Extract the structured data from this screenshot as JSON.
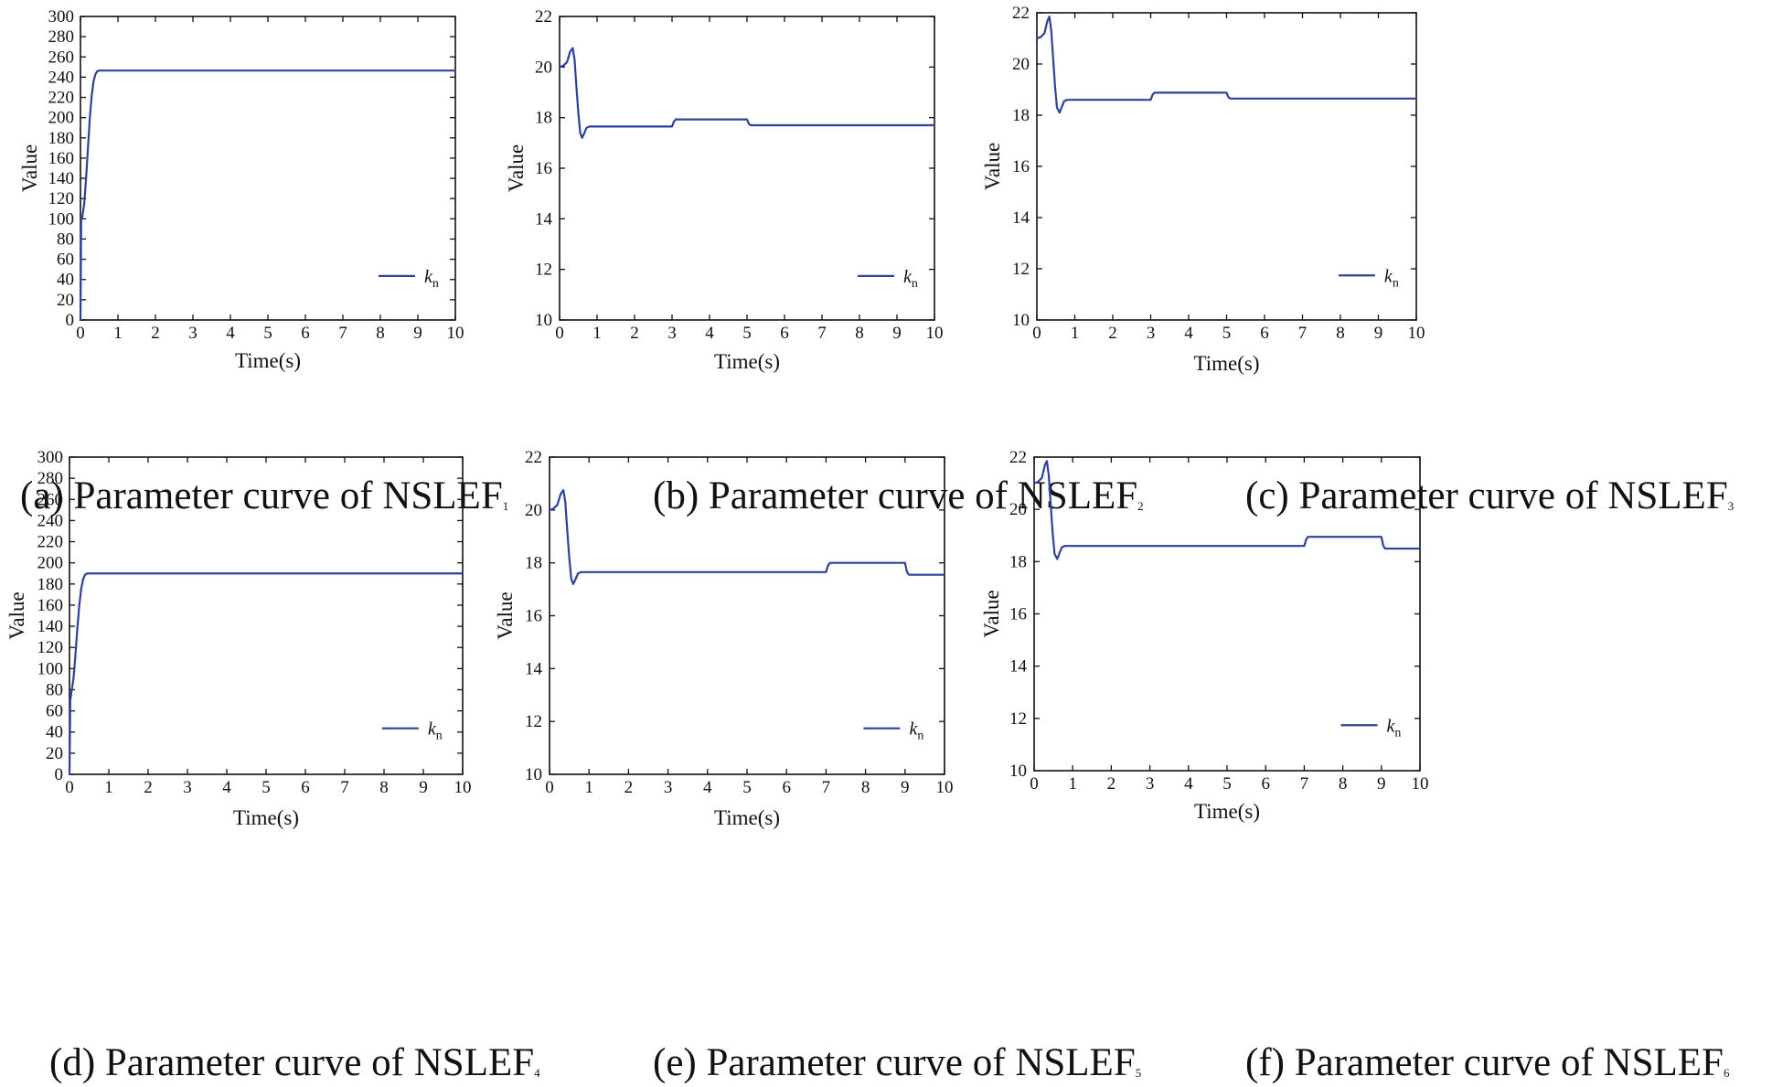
{
  "colors": {
    "line": "#2e3f9e",
    "axis": "#111111",
    "background": "#ffffff"
  },
  "chart_data": [
    {
      "type": "line",
      "caption": "(a) Parameter curve of NSLEF",
      "caption_sub": "1",
      "xlabel": "Time(s)",
      "ylabel": "Value",
      "xlim": [
        0,
        10
      ],
      "ylim": [
        0,
        300
      ],
      "xticks": [
        0,
        1,
        2,
        3,
        4,
        5,
        6,
        7,
        8,
        9,
        10
      ],
      "yticks": [
        0,
        20,
        40,
        60,
        80,
        100,
        120,
        140,
        160,
        180,
        200,
        220,
        240,
        260,
        280,
        300
      ],
      "series": [
        {
          "name": "k",
          "name_sub": "n",
          "x": [
            0,
            0.02,
            0.05,
            0.1,
            0.15,
            0.2,
            0.25,
            0.3,
            0.35,
            0.4,
            0.45,
            0.5,
            0.55,
            0.6,
            1,
            10
          ],
          "y": [
            0,
            100,
            102,
            115,
            140,
            170,
            200,
            222,
            236,
            243,
            246,
            246.5,
            246.5,
            246.5,
            246.5,
            246.5
          ]
        }
      ]
    },
    {
      "type": "line",
      "caption": "(b) Parameter curve of NSLEF",
      "caption_sub": "2",
      "xlabel": "Time(s)",
      "ylabel": "Value",
      "xlim": [
        0,
        10
      ],
      "ylim": [
        10,
        22
      ],
      "xticks": [
        0,
        1,
        2,
        3,
        4,
        5,
        6,
        7,
        8,
        9,
        10
      ],
      "yticks": [
        10,
        12,
        14,
        16,
        18,
        20,
        22
      ],
      "series": [
        {
          "name": "k",
          "name_sub": "n",
          "x": [
            0,
            0.1,
            0.2,
            0.28,
            0.35,
            0.4,
            0.45,
            0.5,
            0.55,
            0.6,
            0.65,
            0.72,
            0.8,
            1,
            3,
            3.05,
            3.1,
            5,
            5.05,
            5.1,
            10
          ],
          "y": [
            20,
            20.05,
            20.2,
            20.6,
            20.75,
            20.3,
            19.2,
            18.2,
            17.4,
            17.2,
            17.35,
            17.6,
            17.65,
            17.65,
            17.65,
            17.85,
            17.93,
            17.93,
            17.75,
            17.7,
            17.7
          ]
        }
      ]
    },
    {
      "type": "line",
      "caption": "(c) Parameter curve of NSLEF",
      "caption_sub": "3",
      "xlabel": "Time(s)",
      "ylabel": "Value",
      "xlim": [
        0,
        10
      ],
      "ylim": [
        10,
        22
      ],
      "xticks": [
        0,
        1,
        2,
        3,
        4,
        5,
        6,
        7,
        8,
        9,
        10
      ],
      "yticks": [
        10,
        12,
        14,
        16,
        18,
        20,
        22
      ],
      "series": [
        {
          "name": "k",
          "name_sub": "n",
          "x": [
            0,
            0.1,
            0.2,
            0.28,
            0.33,
            0.38,
            0.43,
            0.48,
            0.53,
            0.6,
            0.65,
            0.72,
            0.8,
            1,
            3,
            3.05,
            3.1,
            5,
            5.05,
            5.1,
            10
          ],
          "y": [
            21,
            21.05,
            21.2,
            21.7,
            21.85,
            21.3,
            20.2,
            19.1,
            18.3,
            18.1,
            18.3,
            18.55,
            18.6,
            18.6,
            18.6,
            18.8,
            18.88,
            18.88,
            18.7,
            18.65,
            18.65
          ]
        }
      ]
    },
    {
      "type": "line",
      "caption": "(d) Parameter curve of NSLEF",
      "caption_sub": "4",
      "xlabel": "Time(s)",
      "ylabel": "Value",
      "xlim": [
        0,
        10
      ],
      "ylim": [
        0,
        300
      ],
      "xticks": [
        0,
        1,
        2,
        3,
        4,
        5,
        6,
        7,
        8,
        9,
        10
      ],
      "yticks": [
        0,
        20,
        40,
        60,
        80,
        100,
        120,
        140,
        160,
        180,
        200,
        220,
        240,
        260,
        280,
        300
      ],
      "series": [
        {
          "name": "k",
          "name_sub": "n",
          "x": [
            0,
            0.02,
            0.05,
            0.1,
            0.15,
            0.2,
            0.25,
            0.3,
            0.35,
            0.4,
            0.45,
            0.5,
            1,
            10
          ],
          "y": [
            0,
            70,
            78,
            90,
            112,
            138,
            160,
            176,
            185,
            189,
            190,
            190,
            190,
            190
          ]
        }
      ]
    },
    {
      "type": "line",
      "caption": "(e) Parameter curve of NSLEF",
      "caption_sub": "5",
      "xlabel": "Time(s)",
      "ylabel": "Value",
      "xlim": [
        0,
        10
      ],
      "ylim": [
        10,
        22
      ],
      "xticks": [
        0,
        1,
        2,
        3,
        4,
        5,
        6,
        7,
        8,
        9,
        10
      ],
      "yticks": [
        10,
        12,
        14,
        16,
        18,
        20,
        22
      ],
      "series": [
        {
          "name": "k",
          "name_sub": "n",
          "x": [
            0,
            0.1,
            0.2,
            0.28,
            0.35,
            0.4,
            0.45,
            0.5,
            0.55,
            0.6,
            0.65,
            0.72,
            0.8,
            1,
            7,
            7.05,
            7.1,
            9,
            9.05,
            9.1,
            10
          ],
          "y": [
            20,
            20.05,
            20.2,
            20.6,
            20.75,
            20.3,
            19.2,
            18.2,
            17.4,
            17.2,
            17.35,
            17.6,
            17.65,
            17.65,
            17.65,
            17.9,
            18,
            18,
            17.65,
            17.55,
            17.55
          ]
        }
      ]
    },
    {
      "type": "line",
      "caption": "(f) Parameter curve of NSLEF",
      "caption_sub": "6",
      "xlabel": "Time(s)",
      "ylabel": "Value",
      "xlim": [
        0,
        10
      ],
      "ylim": [
        10,
        22
      ],
      "xticks": [
        0,
        1,
        2,
        3,
        4,
        5,
        6,
        7,
        8,
        9,
        10
      ],
      "yticks": [
        10,
        12,
        14,
        16,
        18,
        20,
        22
      ],
      "series": [
        {
          "name": "k",
          "name_sub": "n",
          "x": [
            0,
            0.1,
            0.2,
            0.28,
            0.33,
            0.38,
            0.43,
            0.48,
            0.53,
            0.6,
            0.65,
            0.72,
            0.8,
            1,
            7,
            7.05,
            7.1,
            9,
            9.05,
            9.1,
            10
          ],
          "y": [
            21,
            21.05,
            21.2,
            21.7,
            21.85,
            21.3,
            20.2,
            19.1,
            18.3,
            18.1,
            18.3,
            18.55,
            18.6,
            18.6,
            18.6,
            18.85,
            18.95,
            18.95,
            18.6,
            18.5,
            18.5
          ]
        }
      ]
    }
  ]
}
